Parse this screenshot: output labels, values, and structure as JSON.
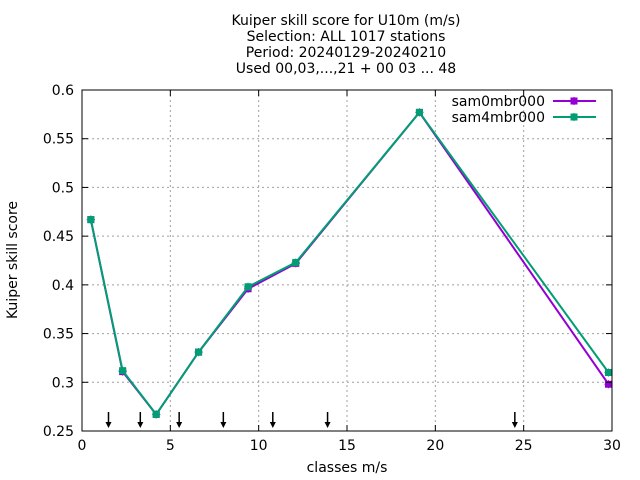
{
  "chart_data": {
    "type": "line",
    "title_lines": [
      "Kuiper skill score  for U10m (m/s)",
      "Selection: ALL   1017 stations",
      "Period: 20240129-20240210",
      "Used 00,03,...,21 + 00 03 ... 48"
    ],
    "xlabel": "classes m/s",
    "ylabel": "Kuiper skill score",
    "xlim": [
      0,
      30
    ],
    "ylim": [
      0.25,
      0.6
    ],
    "xticks": [
      0,
      5,
      10,
      15,
      20,
      25,
      30
    ],
    "yticks": [
      0.25,
      0.3,
      0.35,
      0.4,
      0.45,
      0.5,
      0.55,
      0.6
    ],
    "grid": true,
    "legend_position": "top-right",
    "x": [
      0.5,
      2.3,
      4.2,
      6.6,
      9.4,
      12.1,
      19.1,
      29.8
    ],
    "series": [
      {
        "name": "sam0mbr000",
        "color": "#9400d3",
        "values": [
          0.467,
          0.311,
          0.267,
          0.331,
          0.396,
          0.422,
          0.577,
          0.298
        ]
      },
      {
        "name": "sam4mbr000",
        "color": "#009e73",
        "values": [
          0.467,
          0.312,
          0.267,
          0.331,
          0.398,
          0.423,
          0.577,
          0.31
        ]
      }
    ],
    "class_limit_arrows": [
      1.5,
      3.3,
      5.5,
      8.0,
      10.8,
      13.9,
      24.5
    ]
  }
}
